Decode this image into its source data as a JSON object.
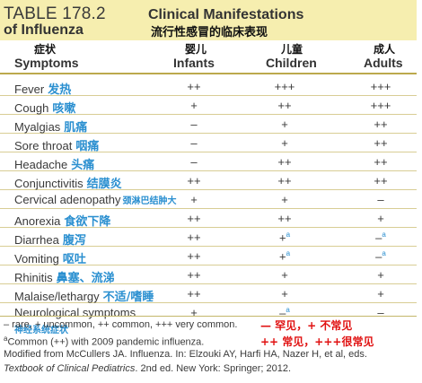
{
  "title": {
    "number": "TABLE 178.2",
    "en_line1": "Clinical Manifestations",
    "en_line2": "of Influenza",
    "cn": "流行性感冒的临床表现"
  },
  "headers": {
    "symptoms": {
      "cn": "症状",
      "en": "Symptoms"
    },
    "infants": {
      "cn": "婴儿",
      "en": "Infants"
    },
    "children": {
      "cn": "儿童",
      "en": "Children"
    },
    "adults": {
      "cn": "成人",
      "en": "Adults"
    }
  },
  "rows": [
    {
      "en": "Fever",
      "cn": "发热",
      "infants": "++",
      "children": "+++",
      "adults": "+++"
    },
    {
      "en": "Cough",
      "cn": "咳嗽",
      "infants": "+",
      "children": "++",
      "adults": "+++"
    },
    {
      "en": "Myalgias",
      "cn": "肌痛",
      "infants": "–",
      "children": "+",
      "adults": "++"
    },
    {
      "en": "Sore throat",
      "cn": "咽痛",
      "infants": "–",
      "children": "+",
      "adults": "++"
    },
    {
      "en": "Headache",
      "cn": "头痛",
      "infants": "–",
      "children": "++",
      "adults": "++"
    },
    {
      "en": "Conjunctivitis",
      "cn": "结膜炎",
      "infants": "++",
      "children": "++",
      "adults": "++"
    },
    {
      "en": "Cervical adenopathy",
      "cn": "颈淋巴结肿大",
      "infants": "+",
      "children": "+",
      "adults": "–"
    },
    {
      "en": "Anorexia",
      "cn": "食欲下降",
      "infants": "++",
      "children": "++",
      "adults": "+"
    },
    {
      "en": "Diarrhea",
      "cn": "腹泻",
      "infants": "++",
      "children": "+",
      "children_sup": "a",
      "adults": "–",
      "adults_sup": "a"
    },
    {
      "en": "Vomiting",
      "cn": "呕吐",
      "infants": "++",
      "children": "+",
      "children_sup": "a",
      "adults": "–",
      "adults_sup": "a"
    },
    {
      "en": "Rhinitis",
      "cn": "鼻塞、流涕",
      "infants": "++",
      "children": "+",
      "adults": "+"
    },
    {
      "en": "Malaise/lethargy",
      "cn": "不适/嗜睡",
      "infants": "++",
      "children": "+",
      "adults": "+"
    },
    {
      "en": "Neurological symptoms",
      "cn": "神经系统症状",
      "infants": "+",
      "children": "–",
      "children_sup": "a",
      "adults": "–"
    }
  ],
  "footnotes": {
    "legend": "– rare, + uncommon, ++ common, +++ very common.",
    "note_a_sup": "a",
    "note_a": "Common (++) with 2009 pandemic influenza.",
    "source": "Modified from McCullers JA. Influenza. In: Elzouki AY, Harfi HA, Nazer H, et al, eds.",
    "book_title": "Textbook of Clinical Pediatrics",
    "book_rest": ". 2nd ed. New York: Springer; 2012.",
    "cn_legend1": "— 罕见，+ 不常见",
    "cn_legend2": "++ 常见，+++很常见"
  },
  "colors": {
    "title_band": "#f6eeaf",
    "cn_blue": "#2a8fd0",
    "cn_red": "#e01010",
    "rule": "#bca94c"
  }
}
